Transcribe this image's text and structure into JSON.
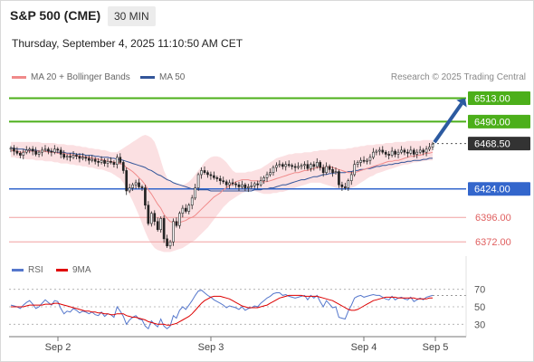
{
  "header": {
    "title": "S&P 500 (CME)",
    "timeframe": "30 MIN",
    "datetime": "Thursday, September 4, 2025 11:10:50 AM CET"
  },
  "legend": {
    "ma20": "MA 20 + Bollinger Bands",
    "ma50": "MA 50",
    "credit": "Research © 2025 Trading Central"
  },
  "rsi_legend": {
    "rsi": "RSI",
    "ma9": "9MA"
  },
  "colors": {
    "green": "#4caf1a",
    "blue": "#3366cc",
    "red": "#e06060",
    "dark": "#333333",
    "arrow": "#2c5aa0",
    "band": "#fadadd"
  },
  "chart_data": {
    "type": "candlestick",
    "price_ylim": [
      6358,
      6525
    ],
    "levels": [
      {
        "value": 6513.0,
        "label": "6513.00",
        "kind": "resistance"
      },
      {
        "value": 6490.0,
        "label": "6490.00",
        "kind": "resistance"
      },
      {
        "value": 6468.5,
        "label": "6468.50",
        "kind": "current"
      },
      {
        "value": 6424.0,
        "label": "6424.00",
        "kind": "pivot"
      },
      {
        "value": 6396.0,
        "label": "6396.00",
        "kind": "support"
      },
      {
        "value": 6372.0,
        "label": "6372.00",
        "kind": "support"
      }
    ],
    "x_ticks": [
      "Sep 2",
      "Sep 3",
      "Sep 4",
      "Sep 5"
    ],
    "close": [
      6464,
      6461,
      6459,
      6457,
      6460,
      6462,
      6463,
      6461,
      6458,
      6460,
      6462,
      6463,
      6461,
      6460,
      6463,
      6462,
      6458,
      6455,
      6456,
      6455,
      6457,
      6456,
      6454,
      6455,
      6454,
      6452,
      6453,
      6451,
      6450,
      6452,
      6449,
      6451,
      6450,
      6448,
      6455,
      6450,
      6442,
      6422,
      6425,
      6428,
      6430,
      6426,
      6425,
      6408,
      6390,
      6400,
      6392,
      6384,
      6395,
      6375,
      6368,
      6372,
      6392,
      6388,
      6400,
      6405,
      6402,
      6408,
      6415,
      6425,
      6438,
      6442,
      6440,
      6438,
      6437,
      6435,
      6434,
      6432,
      6431,
      6428,
      6430,
      6429,
      6428,
      6426,
      6428,
      6425,
      6426,
      6427,
      6429,
      6428,
      6432,
      6435,
      6438,
      6440,
      6445,
      6447,
      6448,
      6446,
      6448,
      6447,
      6446,
      6445,
      6446,
      6447,
      6448,
      6444,
      6448,
      6446,
      6450,
      6445,
      6440,
      6446,
      6443,
      6440,
      6441,
      6428,
      6426,
      6425,
      6432,
      6438,
      6448,
      6450,
      6452,
      6451,
      6452,
      6455,
      6460,
      6461,
      6462,
      6460,
      6458,
      6457,
      6461,
      6458,
      6460,
      6462,
      6460,
      6459,
      6462,
      6458,
      6460,
      6462,
      6460,
      6463,
      6465,
      6468
    ],
    "ma20": [
      6462,
      6461,
      6461,
      6460,
      6460,
      6461,
      6461,
      6461,
      6461,
      6461,
      6461,
      6461,
      6460,
      6460,
      6460,
      6459,
      6459,
      6459,
      6458,
      6458,
      6457,
      6457,
      6456,
      6456,
      6455,
      6455,
      6454,
      6454,
      6453,
      6453,
      6452,
      6451,
      6451,
      6450,
      6450,
      6449,
      6448,
      6445,
      6443,
      6441,
      6438,
      6435,
      6432,
      6428,
      6423,
      6419,
      6414,
      6409,
      6405,
      6399,
      6395,
      6392,
      6391,
      6391,
      6391,
      6392,
      6393,
      6395,
      6396,
      6398,
      6401,
      6404,
      6407,
      6410,
      6413,
      6416,
      6418,
      6420,
      6423,
      6425,
      6427,
      6429,
      6431,
      6432,
      6433,
      6433,
      6433,
      6432,
      6432,
      6432,
      6431,
      6431,
      6431,
      6432,
      6433,
      6434,
      6435,
      6436,
      6437,
      6438,
      6439,
      6440,
      6440,
      6441,
      6442,
      6442,
      6443,
      6444,
      6445,
      6445,
      6445,
      6445,
      6446,
      6445,
      6444,
      6443,
      6442,
      6441,
      6440,
      6440,
      6440,
      6441,
      6442,
      6443,
      6444,
      6445,
      6446,
      6447,
      6448,
      6449,
      6450,
      6451,
      6451,
      6452,
      6452,
      6453,
      6454,
      6455,
      6456,
      6456,
      6457,
      6457,
      6458,
      6459,
      6459,
      6460
    ],
    "ma50": [
      6464,
      6464,
      6463,
      6463,
      6463,
      6462,
      6462,
      6462,
      6462,
      6461,
      6461,
      6461,
      6461,
      6461,
      6460,
      6460,
      6460,
      6460,
      6459,
      6459,
      6459,
      6458,
      6458,
      6458,
      6457,
      6457,
      6457,
      6456,
      6456,
      6455,
      6455,
      6455,
      6454,
      6454,
      6453,
      6453,
      6452,
      6451,
      6450,
      6449,
      6448,
      6447,
      6446,
      6445,
      6443,
      6442,
      6440,
      6438,
      6437,
      6435,
      6433,
      6432,
      6430,
      6429,
      6428,
      6427,
      6426,
      6425,
      6424,
      6424,
      6423,
      6423,
      6423,
      6423,
      6422,
      6422,
      6422,
      6422,
      6422,
      6422,
      6422,
      6422,
      6422,
      6422,
      6422,
      6422,
      6422,
      6422,
      6423,
      6423,
      6423,
      6424,
      6424,
      6425,
      6425,
      6426,
      6427,
      6428,
      6428,
      6429,
      6430,
      6431,
      6432,
      6433,
      6433,
      6434,
      6435,
      6436,
      6436,
      6437,
      6438,
      6438,
      6439,
      6439,
      6440,
      6440,
      6440,
      6440,
      6441,
      6441,
      6442,
      6442,
      6443,
      6443,
      6444,
      6444,
      6445,
      6446,
      6446,
      6447,
      6447,
      6448,
      6448,
      6449,
      6449,
      6450,
      6450,
      6451,
      6451,
      6452,
      6452,
      6452,
      6453,
      6453,
      6454,
      6454
    ],
    "bands": {
      "upper": [
        6470,
        6470,
        6470,
        6470,
        6470,
        6470,
        6470,
        6470,
        6470,
        6470,
        6469,
        6469,
        6469,
        6469,
        6469,
        6468,
        6468,
        6468,
        6467,
        6467,
        6467,
        6466,
        6466,
        6465,
        6465,
        6464,
        6464,
        6463,
        6463,
        6462,
        6462,
        6461,
        6460,
        6460,
        6460,
        6462,
        6464,
        6466,
        6468,
        6470,
        6472,
        6474,
        6476,
        6477,
        6476,
        6474,
        6470,
        6462,
        6452,
        6442,
        6435,
        6432,
        6430,
        6429,
        6428,
        6428,
        6429,
        6431,
        6434,
        6438,
        6442,
        6446,
        6450,
        6453,
        6455,
        6456,
        6456,
        6455,
        6453,
        6450,
        6446,
        6442,
        6440,
        6440,
        6440,
        6440,
        6441,
        6441,
        6442,
        6443,
        6444,
        6446,
        6448,
        6450,
        6452,
        6454,
        6455,
        6456,
        6457,
        6458,
        6458,
        6459,
        6459,
        6459,
        6460,
        6460,
        6460,
        6461,
        6461,
        6462,
        6462,
        6462,
        6463,
        6463,
        6463,
        6463,
        6463,
        6463,
        6464,
        6464,
        6465,
        6465,
        6466,
        6466,
        6467,
        6467,
        6467,
        6468,
        6468,
        6468,
        6469,
        6469,
        6469,
        6470,
        6470,
        6470,
        6470,
        6471,
        6471,
        6471,
        6471,
        6471,
        6472,
        6472,
        6472,
        6472
      ],
      "lower": [
        6455,
        6455,
        6454,
        6454,
        6454,
        6453,
        6453,
        6453,
        6452,
        6452,
        6452,
        6451,
        6451,
        6451,
        6450,
        6450,
        6449,
        6449,
        6449,
        6448,
        6448,
        6447,
        6447,
        6446,
        6446,
        6445,
        6445,
        6444,
        6443,
        6443,
        6442,
        6441,
        6440,
        6438,
        6436,
        6434,
        6430,
        6424,
        6418,
        6412,
        6405,
        6398,
        6390,
        6382,
        6375,
        6370,
        6366,
        6364,
        6363,
        6362,
        6362,
        6362,
        6363,
        6364,
        6365,
        6366,
        6368,
        6370,
        6372,
        6374,
        6377,
        6380,
        6383,
        6386,
        6390,
        6394,
        6398,
        6402,
        6406,
        6409,
        6412,
        6414,
        6416,
        6418,
        6420,
        6421,
        6422,
        6422,
        6422,
        6421,
        6420,
        6419,
        6419,
        6419,
        6420,
        6420,
        6421,
        6421,
        6422,
        6423,
        6424,
        6425,
        6426,
        6427,
        6428,
        6429,
        6430,
        6430,
        6430,
        6430,
        6429,
        6428,
        6427,
        6426,
        6425,
        6424,
        6424,
        6424,
        6424,
        6425,
        6426,
        6428,
        6430,
        6432,
        6434,
        6436,
        6437,
        6439,
        6440,
        6441,
        6442,
        6443,
        6444,
        6445,
        6446,
        6447,
        6448,
        6448,
        6449,
        6450,
        6450,
        6451,
        6451,
        6452,
        6452,
        6452
      ]
    },
    "rsi_ylim": [
      20,
      80
    ],
    "rsi_ticks": [
      70,
      50,
      30
    ],
    "rsi": [
      52,
      51,
      50,
      48,
      52,
      55,
      57,
      53,
      48,
      50,
      54,
      58,
      55,
      52,
      57,
      56,
      48,
      42,
      45,
      44,
      48,
      46,
      43,
      45,
      44,
      42,
      44,
      41,
      40,
      44,
      39,
      42,
      41,
      38,
      50,
      45,
      39,
      30,
      35,
      38,
      40,
      36,
      35,
      28,
      25,
      34,
      30,
      27,
      36,
      28,
      25,
      28,
      40,
      37,
      46,
      50,
      47,
      52,
      57,
      63,
      68,
      69,
      66,
      63,
      61,
      58,
      56,
      54,
      52,
      49,
      51,
      50,
      49,
      47,
      50,
      46,
      48,
      49,
      51,
      50,
      54,
      57,
      60,
      62,
      65,
      66,
      66,
      63,
      64,
      62,
      61,
      60,
      61,
      62,
      63,
      58,
      63,
      60,
      63,
      56,
      50,
      57,
      53,
      49,
      50,
      38,
      37,
      36,
      45,
      52,
      60,
      62,
      63,
      61,
      62,
      63,
      64,
      63,
      63,
      61,
      59,
      58,
      62,
      58,
      60,
      61,
      59,
      58,
      61,
      56,
      58,
      60,
      58,
      61,
      62,
      63
    ],
    "rsi_ma9": [
      50,
      50,
      50,
      50,
      50,
      51,
      52,
      52,
      52,
      52,
      52,
      53,
      53,
      53,
      54,
      54,
      53,
      52,
      51,
      50,
      49,
      48,
      47,
      46,
      45,
      45,
      44,
      44,
      43,
      43,
      42,
      42,
      41,
      41,
      42,
      42,
      42,
      40,
      39,
      38,
      38,
      37,
      36,
      35,
      33,
      32,
      31,
      30,
      30,
      30,
      29,
      29,
      30,
      31,
      33,
      35,
      37,
      39,
      42,
      46,
      50,
      54,
      57,
      59,
      61,
      62,
      62,
      62,
      61,
      60,
      59,
      57,
      55,
      53,
      51,
      50,
      49,
      49,
      49,
      49,
      50,
      51,
      52,
      54,
      56,
      58,
      60,
      61,
      62,
      63,
      63,
      63,
      63,
      63,
      62,
      62,
      62,
      62,
      62,
      61,
      60,
      59,
      58,
      57,
      55,
      53,
      51,
      49,
      47,
      46,
      46,
      47,
      49,
      51,
      53,
      55,
      57,
      58,
      59,
      60,
      61,
      61,
      61,
      61,
      60,
      60,
      60,
      60,
      60,
      60,
      59,
      59,
      59,
      59,
      60,
      60
    ]
  }
}
